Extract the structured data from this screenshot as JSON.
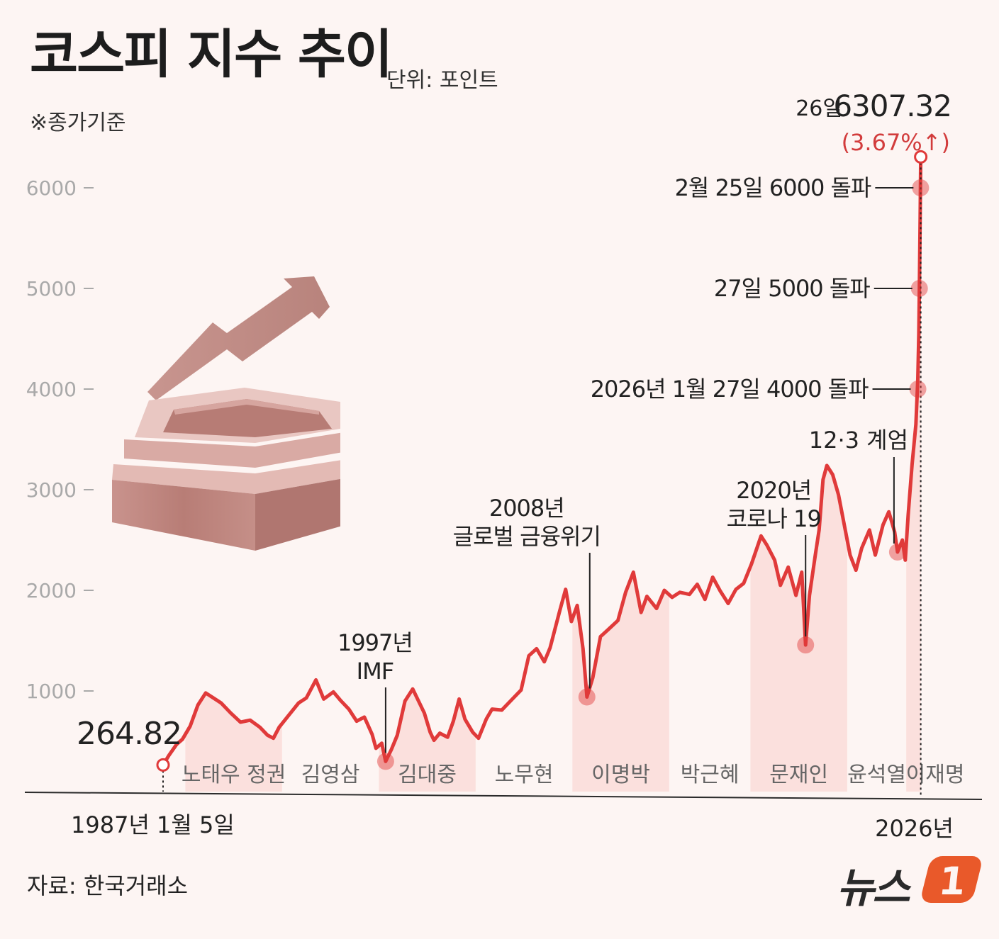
{
  "title": "코스피 지수 추이",
  "unit": "단위: 포인트",
  "note": "※종가기준",
  "source": "자료: 한국거래소",
  "brand": {
    "name": "뉴스",
    "badge": "1"
  },
  "colors": {
    "line": "#e03a3a",
    "shade": "#fbe0dd",
    "axis": "#333333",
    "accent_red": "#d23c3c"
  },
  "chart_data": {
    "type": "line",
    "title": "코스피 지수 추이",
    "ylabel": "단위: 포인트",
    "ylim": [
      0,
      6500
    ],
    "xlim": [
      1987.0,
      2026.2
    ],
    "yticks": [
      {
        "value": 1000,
        "label": "1000"
      },
      {
        "value": 2000,
        "label": "2000"
      },
      {
        "value": 3000,
        "label": "3000"
      },
      {
        "value": 4000,
        "label": "4000"
      },
      {
        "value": 5000,
        "label": "5000"
      },
      {
        "value": 6000,
        "label": "6000"
      }
    ],
    "x_start_label": "1987년 1월 5일",
    "x_end_label": "2026년",
    "start": {
      "x": 1987.0,
      "y": 264.82,
      "label": "264.82"
    },
    "end": {
      "x": 2026.15,
      "y": 6307.32,
      "date_label": "26일",
      "value_label": "6307.32",
      "change_label": "(3.67%↑)"
    },
    "series": [
      {
        "name": "KOSPI",
        "points": [
          [
            1987.0,
            265
          ],
          [
            1987.3,
            360
          ],
          [
            1987.7,
            470
          ],
          [
            1988.0,
            520
          ],
          [
            1988.4,
            650
          ],
          [
            1988.8,
            860
          ],
          [
            1989.2,
            980
          ],
          [
            1989.6,
            930
          ],
          [
            1990.0,
            880
          ],
          [
            1990.5,
            780
          ],
          [
            1991.0,
            690
          ],
          [
            1991.5,
            710
          ],
          [
            1992.0,
            640
          ],
          [
            1992.4,
            560
          ],
          [
            1992.7,
            530
          ],
          [
            1993.0,
            640
          ],
          [
            1993.5,
            760
          ],
          [
            1994.0,
            880
          ],
          [
            1994.4,
            930
          ],
          [
            1994.9,
            1110
          ],
          [
            1995.3,
            920
          ],
          [
            1995.8,
            990
          ],
          [
            1996.2,
            900
          ],
          [
            1996.6,
            820
          ],
          [
            1997.0,
            700
          ],
          [
            1997.4,
            740
          ],
          [
            1997.8,
            570
          ],
          [
            1998.0,
            430
          ],
          [
            1998.3,
            480
          ],
          [
            1998.5,
            300
          ],
          [
            1998.8,
            420
          ],
          [
            1999.1,
            560
          ],
          [
            1999.5,
            900
          ],
          [
            1999.9,
            1020
          ],
          [
            2000.2,
            900
          ],
          [
            2000.5,
            780
          ],
          [
            2000.8,
            590
          ],
          [
            2001.0,
            510
          ],
          [
            2001.3,
            580
          ],
          [
            2001.7,
            540
          ],
          [
            2002.0,
            700
          ],
          [
            2002.3,
            920
          ],
          [
            2002.6,
            720
          ],
          [
            2003.0,
            590
          ],
          [
            2003.3,
            530
          ],
          [
            2003.7,
            720
          ],
          [
            2004.0,
            820
          ],
          [
            2004.5,
            810
          ],
          [
            2005.0,
            910
          ],
          [
            2005.5,
            1010
          ],
          [
            2005.9,
            1350
          ],
          [
            2006.3,
            1420
          ],
          [
            2006.7,
            1290
          ],
          [
            2007.0,
            1430
          ],
          [
            2007.5,
            1800
          ],
          [
            2007.8,
            2010
          ],
          [
            2008.1,
            1690
          ],
          [
            2008.4,
            1850
          ],
          [
            2008.7,
            1420
          ],
          [
            2008.9,
            940
          ],
          [
            2009.2,
            1130
          ],
          [
            2009.6,
            1540
          ],
          [
            2010.0,
            1610
          ],
          [
            2010.5,
            1700
          ],
          [
            2010.9,
            1980
          ],
          [
            2011.3,
            2180
          ],
          [
            2011.7,
            1780
          ],
          [
            2012.0,
            1940
          ],
          [
            2012.5,
            1820
          ],
          [
            2012.9,
            2000
          ],
          [
            2013.3,
            1930
          ],
          [
            2013.7,
            1980
          ],
          [
            2014.2,
            1960
          ],
          [
            2014.6,
            2060
          ],
          [
            2015.0,
            1910
          ],
          [
            2015.4,
            2130
          ],
          [
            2015.8,
            1990
          ],
          [
            2016.2,
            1870
          ],
          [
            2016.6,
            2010
          ],
          [
            2017.0,
            2070
          ],
          [
            2017.4,
            2260
          ],
          [
            2017.9,
            2540
          ],
          [
            2018.2,
            2450
          ],
          [
            2018.6,
            2300
          ],
          [
            2018.9,
            2050
          ],
          [
            2019.3,
            2230
          ],
          [
            2019.7,
            1950
          ],
          [
            2020.0,
            2180
          ],
          [
            2020.2,
            1457
          ],
          [
            2020.4,
            1950
          ],
          [
            2020.7,
            2350
          ],
          [
            2020.9,
            2600
          ],
          [
            2021.1,
            3100
          ],
          [
            2021.3,
            3240
          ],
          [
            2021.6,
            3150
          ],
          [
            2021.9,
            2950
          ],
          [
            2022.2,
            2650
          ],
          [
            2022.5,
            2350
          ],
          [
            2022.8,
            2200
          ],
          [
            2023.1,
            2420
          ],
          [
            2023.5,
            2600
          ],
          [
            2023.8,
            2350
          ],
          [
            2024.2,
            2650
          ],
          [
            2024.5,
            2780
          ],
          [
            2024.8,
            2580
          ],
          [
            2024.95,
            2380
          ],
          [
            2025.2,
            2500
          ],
          [
            2025.35,
            2300
          ],
          [
            2025.5,
            2750
          ],
          [
            2025.7,
            3250
          ],
          [
            2025.9,
            3650
          ],
          [
            2026.0,
            4100
          ],
          [
            2026.05,
            4550
          ],
          [
            2026.08,
            5000
          ],
          [
            2026.12,
            5700
          ],
          [
            2026.15,
            6307
          ]
        ]
      }
    ],
    "eras": [
      {
        "name": "노태우 정권",
        "start": 1988.15,
        "end": 1993.15,
        "shaded": true
      },
      {
        "name": "김영삼",
        "start": 1993.15,
        "end": 1998.15,
        "shaded": false
      },
      {
        "name": "김대중",
        "start": 1998.15,
        "end": 2003.15,
        "shaded": true
      },
      {
        "name": "노무현",
        "start": 2003.15,
        "end": 2008.15,
        "shaded": false
      },
      {
        "name": "이명박",
        "start": 2008.15,
        "end": 2013.15,
        "shaded": true
      },
      {
        "name": "박근혜",
        "start": 2013.15,
        "end": 2017.35,
        "shaded": false
      },
      {
        "name": "문재인",
        "start": 2017.35,
        "end": 2022.35,
        "shaded": true
      },
      {
        "name": "윤석열",
        "start": 2022.35,
        "end": 2025.4,
        "shaded": false
      },
      {
        "name": "이재명",
        "start": 2025.4,
        "end": 2026.2,
        "shaded": true
      }
    ],
    "annotations": [
      {
        "x": 1998.5,
        "y": 300,
        "lines": [
          "1997년",
          "IMF"
        ]
      },
      {
        "x": 2008.9,
        "y": 940,
        "lines": [
          "2008년",
          "글로벌 금융위기"
        ]
      },
      {
        "x": 2020.2,
        "y": 1457,
        "lines": [
          "2020년",
          "코로나 19"
        ]
      },
      {
        "x": 2024.95,
        "y": 2380,
        "lines": [
          "12·3 계엄"
        ]
      },
      {
        "x": 2026.0,
        "y": 4000,
        "lines": [
          "2026년 1월 27일 4000 돌파"
        ]
      },
      {
        "x": 2026.08,
        "y": 5000,
        "lines": [
          "27일 5000 돌파"
        ]
      },
      {
        "x": 2026.14,
        "y": 6000,
        "lines": [
          "2월 25일 6000 돌파"
        ]
      }
    ]
  }
}
